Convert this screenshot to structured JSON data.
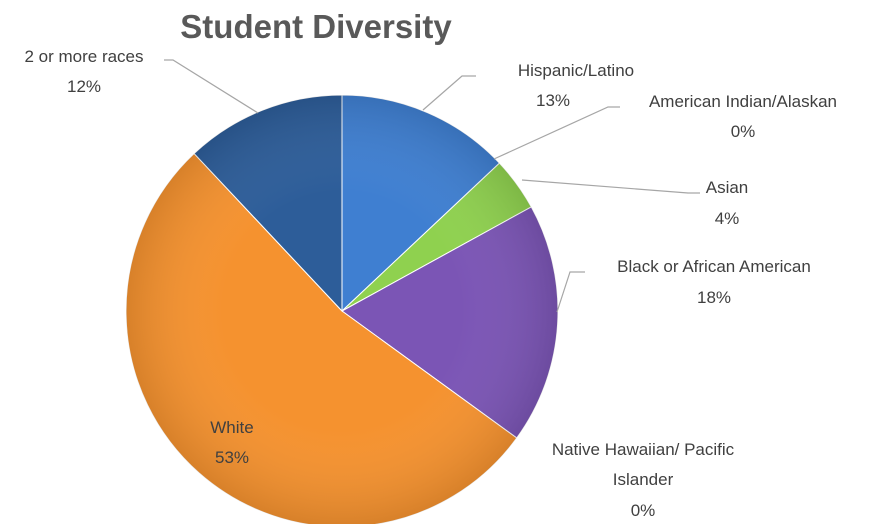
{
  "chart_data": {
    "type": "pie",
    "title": "Student Diversity",
    "start_angle_deg": 0,
    "direction": "clockwise",
    "slices": [
      {
        "label": "Hispanic/Latino",
        "percent_label": "13%",
        "value": 13,
        "color": "#3f7fd1"
      },
      {
        "label": "American Indian/Alaskan",
        "percent_label": "0%",
        "value": 0,
        "color": "#5a9ee8"
      },
      {
        "label": "Asian",
        "percent_label": "4%",
        "value": 4,
        "color": "#8fd14f"
      },
      {
        "label": "Black or African American",
        "percent_label": "18%",
        "value": 18,
        "color": "#7b55b5"
      },
      {
        "label": "Native Hawaiian/ Pacific Islander",
        "percent_label": "0%",
        "value": 0,
        "color": "#4f9fd9"
      },
      {
        "label": "White",
        "percent_label": "53%",
        "value": 53,
        "color": "#f5922f"
      },
      {
        "label": "2 or more races",
        "percent_label": "12%",
        "value": 12,
        "color": "#2d5d99"
      }
    ],
    "legend": "none"
  }
}
